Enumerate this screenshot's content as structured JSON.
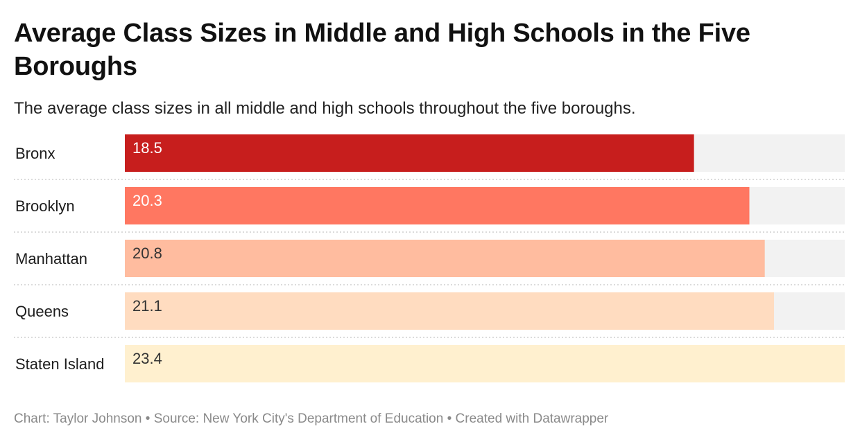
{
  "title": "Average Class Sizes in Middle and High Schools in the Five Boroughs",
  "subtitle": "The average class sizes in all middle and high schools throughout the five boroughs.",
  "chart_data": {
    "type": "bar",
    "orientation": "horizontal",
    "categories": [
      "Bronx",
      "Brooklyn",
      "Manhattan",
      "Queens",
      "Staten Island"
    ],
    "values": [
      18.5,
      20.3,
      20.8,
      21.1,
      23.4
    ],
    "value_labels": [
      "18.5",
      "20.3",
      "20.8",
      "21.1",
      "23.4"
    ],
    "xlim": [
      0,
      23.4
    ],
    "colors": [
      "#c71e1d",
      "#ff7761",
      "#ffbc9f",
      "#ffdcc0",
      "#fff0cf"
    ],
    "label_colors": [
      "#ffffff",
      "#ffffff",
      "#333333",
      "#333333",
      "#333333"
    ],
    "track_color": "#f2f2f2",
    "grid": false
  },
  "footer": {
    "credit": "Chart: Taylor Johnson",
    "source": "Source: New York City's Department of Education",
    "tool": "Created with Datawrapper",
    "separator": " • "
  }
}
